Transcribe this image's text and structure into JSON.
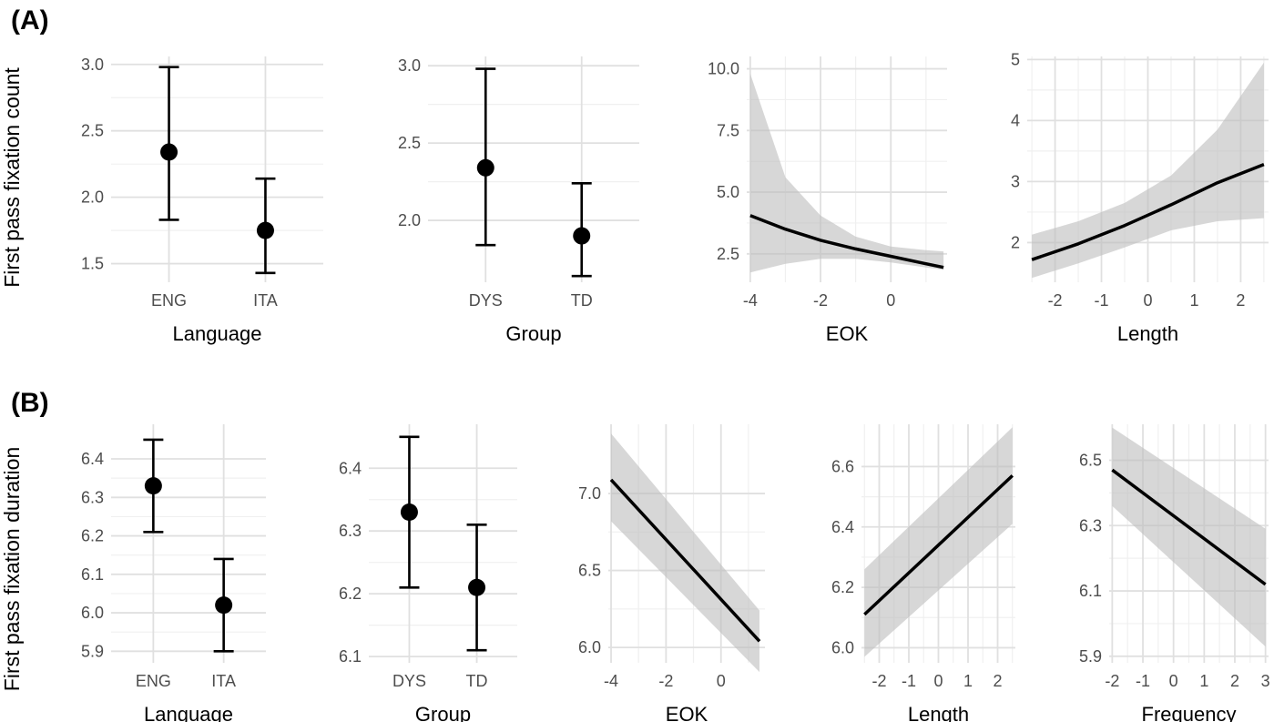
{
  "row_labels": [
    "(A)",
    "(B)"
  ],
  "row_y_titles": [
    "First pass fixation count",
    "First pass fixation duration"
  ],
  "chart_data": [
    {
      "type": "errorbar",
      "row": 0,
      "xlabel": "Language",
      "categories": [
        "ENG",
        "ITA"
      ],
      "estimates": [
        2.34,
        1.75
      ],
      "lower": [
        1.83,
        1.43
      ],
      "upper": [
        2.98,
        2.14
      ],
      "ylim": [
        1.36,
        3.06
      ],
      "yticks": [
        1.5,
        2.0,
        2.5,
        3.0
      ],
      "ytick_labels": [
        "1.5",
        "2.0",
        "2.5",
        "3.0"
      ]
    },
    {
      "type": "errorbar",
      "row": 0,
      "xlabel": "Group",
      "categories": [
        "DYS",
        "TD"
      ],
      "estimates": [
        2.34,
        1.9
      ],
      "lower": [
        1.84,
        1.64
      ],
      "upper": [
        2.98,
        2.24
      ],
      "ylim": [
        1.6,
        3.06
      ],
      "yticks": [
        2.0,
        2.5,
        3.0
      ],
      "ytick_labels": [
        "2.0",
        "2.5",
        "3.0"
      ]
    },
    {
      "type": "line",
      "row": 0,
      "xlabel": "EOK",
      "x": [
        -4,
        -3,
        -2,
        -1,
        0,
        1,
        1.5
      ],
      "y": [
        4.05,
        3.5,
        3.05,
        2.7,
        2.4,
        2.1,
        1.95
      ],
      "band_lower": [
        1.75,
        2.1,
        2.3,
        2.3,
        2.15,
        1.95,
        1.85
      ],
      "band_upper": [
        9.8,
        5.6,
        4.05,
        3.2,
        2.8,
        2.65,
        2.6
      ],
      "xlim": [
        -4.1,
        1.6
      ],
      "ylim": [
        1.35,
        10.5
      ],
      "xticks": [
        -4,
        -2,
        0
      ],
      "xtick_labels": [
        "-4",
        "-2",
        "0"
      ],
      "yticks": [
        2.5,
        5.0,
        7.5,
        10.0
      ],
      "ytick_labels": [
        "2.5",
        "5.0",
        "7.5",
        "10.0"
      ]
    },
    {
      "type": "line",
      "row": 0,
      "xlabel": "Length",
      "x": [
        -2.5,
        -1.5,
        -0.5,
        0.5,
        1.5,
        2.5
      ],
      "y": [
        1.72,
        1.98,
        2.28,
        2.62,
        2.98,
        3.28
      ],
      "band_lower": [
        1.42,
        1.66,
        1.92,
        2.2,
        2.35,
        2.4
      ],
      "band_upper": [
        2.13,
        2.35,
        2.65,
        3.1,
        3.85,
        4.95
      ],
      "xlim": [
        -2.6,
        2.6
      ],
      "ylim": [
        1.35,
        5.05
      ],
      "xticks": [
        -2,
        -1,
        0,
        1,
        2
      ],
      "xtick_labels": [
        "-2",
        "-1",
        "0",
        "1",
        "2"
      ],
      "yticks": [
        2,
        3,
        4,
        5
      ],
      "ytick_labels": [
        "2",
        "3",
        "4",
        "5"
      ]
    },
    {
      "type": "errorbar",
      "row": 1,
      "xlabel": "Language",
      "categories": [
        "ENG",
        "ITA"
      ],
      "estimates": [
        6.33,
        6.02
      ],
      "lower": [
        6.21,
        5.9
      ],
      "upper": [
        6.45,
        6.14
      ],
      "ylim": [
        5.87,
        6.49
      ],
      "yticks": [
        5.9,
        6.0,
        6.1,
        6.2,
        6.3,
        6.4
      ],
      "ytick_labels": [
        "5.9",
        "6.0",
        "6.1",
        "6.2",
        "6.3",
        "6.4"
      ]
    },
    {
      "type": "errorbar",
      "row": 1,
      "xlabel": "Group",
      "categories": [
        "DYS",
        "TD"
      ],
      "estimates": [
        6.33,
        6.21
      ],
      "lower": [
        6.21,
        6.11
      ],
      "upper": [
        6.45,
        6.31
      ],
      "ylim": [
        6.09,
        6.47
      ],
      "yticks": [
        6.1,
        6.2,
        6.3,
        6.4
      ],
      "ytick_labels": [
        "6.1",
        "6.2",
        "6.3",
        "6.4"
      ]
    },
    {
      "type": "line",
      "row": 1,
      "xlabel": "EOK",
      "x": [
        -4,
        1.4
      ],
      "y": [
        7.09,
        6.04
      ],
      "band_lower": [
        6.82,
        5.84
      ],
      "band_upper": [
        7.39,
        6.24
      ],
      "xlim": [
        -4.1,
        1.6
      ],
      "ylim": [
        5.9,
        7.45
      ],
      "xticks": [
        -4,
        -2,
        0
      ],
      "xtick_labels": [
        "-4",
        "-2",
        "0"
      ],
      "yticks": [
        6.0,
        6.5,
        7.0
      ],
      "ytick_labels": [
        "6.0",
        "6.5",
        "7.0"
      ]
    },
    {
      "type": "line",
      "row": 1,
      "xlabel": "Length",
      "x": [
        -2.5,
        2.5
      ],
      "y": [
        6.11,
        6.57
      ],
      "band_lower": [
        5.97,
        6.41
      ],
      "band_upper": [
        6.26,
        6.73
      ],
      "xlim": [
        -2.6,
        2.6
      ],
      "ylim": [
        5.95,
        6.74
      ],
      "xticks": [
        -2,
        -1,
        0,
        1,
        2
      ],
      "xtick_labels": [
        "-2",
        "-1",
        "0",
        "1",
        "2"
      ],
      "yticks": [
        6.0,
        6.2,
        6.4,
        6.6
      ],
      "ytick_labels": [
        "6.0",
        "6.2",
        "6.4",
        "6.6"
      ]
    },
    {
      "type": "line",
      "row": 1,
      "xlabel": "Frequency",
      "x": [
        -2,
        3
      ],
      "y": [
        6.47,
        6.12
      ],
      "band_lower": [
        6.36,
        5.93
      ],
      "band_upper": [
        6.6,
        6.29
      ],
      "xlim": [
        -2.1,
        3.1
      ],
      "ylim": [
        5.88,
        6.61
      ],
      "xticks": [
        -2,
        -1,
        0,
        1,
        2,
        3
      ],
      "xtick_labels": [
        "-2",
        "-1",
        "0",
        "1",
        "2",
        "3"
      ],
      "yticks": [
        5.9,
        6.1,
        6.3,
        6.5
      ],
      "ytick_labels": [
        "5.9",
        "6.1",
        "6.3",
        "6.5"
      ]
    }
  ]
}
